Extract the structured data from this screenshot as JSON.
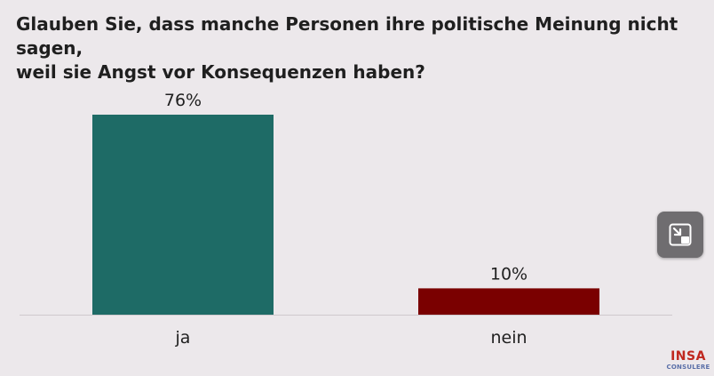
{
  "title_lines": [
    "Glauben Sie, dass manche Personen ihre politische Meinung nicht sagen,",
    "weil sie Angst vor Konsequenzen haben?"
  ],
  "chart_data": {
    "type": "bar",
    "categories": [
      "ja",
      "nein"
    ],
    "values": [
      76,
      10
    ],
    "value_labels": [
      "76%",
      "10%"
    ],
    "colors": [
      "#1e6b66",
      "#7a0000"
    ],
    "title": "Glauben Sie, dass manche Personen ihre politische Meinung nicht sagen, weil sie Angst vor Konsequenzen haben?",
    "xlabel": "",
    "ylabel": "",
    "ylim": [
      0,
      100
    ],
    "grid": false
  },
  "overlay": {
    "pip_button_icon": "picture-in-picture-exit-icon"
  },
  "logo": {
    "brand": "INSA",
    "sub": "CONSULERE",
    "brand_color": "#c0281f",
    "sub_color": "#5a6fa8"
  }
}
